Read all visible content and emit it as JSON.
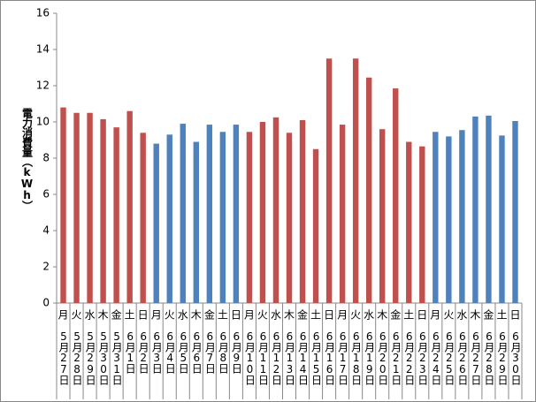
{
  "chart_data": {
    "type": "bar",
    "y_label": "電力消費量（kWh）",
    "categories": [
      "月",
      "火",
      "水",
      "木",
      "金",
      "土",
      "日",
      "月",
      "火",
      "水",
      "木",
      "金",
      "土",
      "日",
      "月",
      "火",
      "水",
      "木",
      "金",
      "土",
      "日",
      "月",
      "火",
      "水",
      "木",
      "金",
      "土",
      "日",
      "月",
      "火",
      "水",
      "木",
      "金",
      "土",
      "日"
    ],
    "dates": [
      "5月27日",
      "5月28日",
      "5月29日",
      "5月30日",
      "5月31日",
      "6月1日",
      "6月2日",
      "6月3日",
      "6月4日",
      "6月5日",
      "6月6日",
      "6月7日",
      "6月8日",
      "6月9日",
      "6月10日",
      "6月11日",
      "6月12日",
      "6月13日",
      "6月14日",
      "6月15日",
      "6月16日",
      "6月17日",
      "6月18日",
      "6月19日",
      "6月20日",
      "6月21日",
      "6月22日",
      "6月23日",
      "6月24日",
      "6月25日",
      "6月26日",
      "6月27日",
      "6月28日",
      "6月29日",
      "6月30日"
    ],
    "values": [
      10.8,
      10.5,
      10.5,
      10.15,
      9.7,
      10.6,
      9.4,
      8.8,
      9.3,
      9.9,
      8.9,
      9.85,
      9.45,
      9.85,
      9.45,
      10.0,
      10.25,
      9.4,
      10.1,
      8.5,
      13.5,
      9.85,
      13.5,
      12.45,
      9.6,
      11.85,
      8.9,
      8.65,
      9.45,
      9.2,
      9.55,
      10.3,
      10.35,
      9.25,
      10.05
    ],
    "colors": [
      "#c0504d",
      "#c0504d",
      "#c0504d",
      "#c0504d",
      "#c0504d",
      "#c0504d",
      "#c0504d",
      "#4f81bd",
      "#4f81bd",
      "#4f81bd",
      "#4f81bd",
      "#4f81bd",
      "#4f81bd",
      "#4f81bd",
      "#c0504d",
      "#c0504d",
      "#c0504d",
      "#c0504d",
      "#c0504d",
      "#c0504d",
      "#c0504d",
      "#c0504d",
      "#c0504d",
      "#c0504d",
      "#c0504d",
      "#c0504d",
      "#c0504d",
      "#c0504d",
      "#4f81bd",
      "#4f81bd",
      "#4f81bd",
      "#4f81bd",
      "#4f81bd",
      "#4f81bd",
      "#4f81bd"
    ],
    "ylim": [
      0,
      16
    ],
    "yticks": [
      0,
      2,
      4,
      6,
      8,
      10,
      12,
      14,
      16
    ],
    "grid": false
  }
}
